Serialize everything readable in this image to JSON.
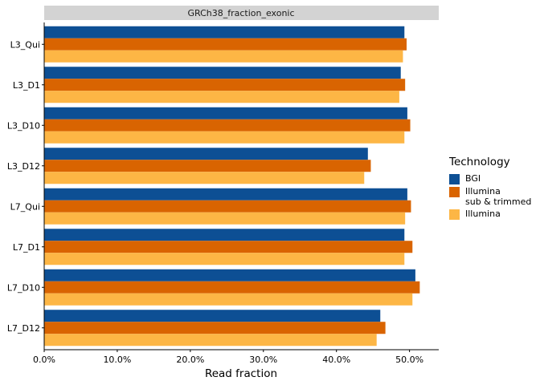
{
  "chart_data": {
    "type": "bar",
    "orientation": "horizontal",
    "facet_title": "GRCh38_fraction_exonic",
    "xlabel": "Read fraction",
    "ylabel": "",
    "xlim": [
      0,
      0.54
    ],
    "x_ticks": [
      0,
      0.1,
      0.2,
      0.3,
      0.4,
      0.5
    ],
    "x_tick_labels": [
      "0.0%",
      "10.0%",
      "20.0%",
      "30.0%",
      "40.0%",
      "50.0%"
    ],
    "categories": [
      "L3_Qui",
      "L3_D1",
      "L3_D10",
      "L3_D12",
      "L7_Qui",
      "L7_D1",
      "L7_D10",
      "L7_D12"
    ],
    "series": [
      {
        "name": "BGI",
        "color": "#0d4f94",
        "values": [
          0.493,
          0.488,
          0.497,
          0.443,
          0.497,
          0.493,
          0.508,
          0.46
        ]
      },
      {
        "name": "Illumina\nsub & trimmed",
        "color": "#d96401",
        "values": [
          0.496,
          0.494,
          0.501,
          0.447,
          0.502,
          0.504,
          0.514,
          0.467
        ]
      },
      {
        "name": "Illumina",
        "color": "#fdb645",
        "values": [
          0.491,
          0.486,
          0.493,
          0.438,
          0.494,
          0.493,
          0.504,
          0.455
        ]
      }
    ],
    "legend_title": "Technology",
    "legend_position": "right",
    "grid": false
  }
}
